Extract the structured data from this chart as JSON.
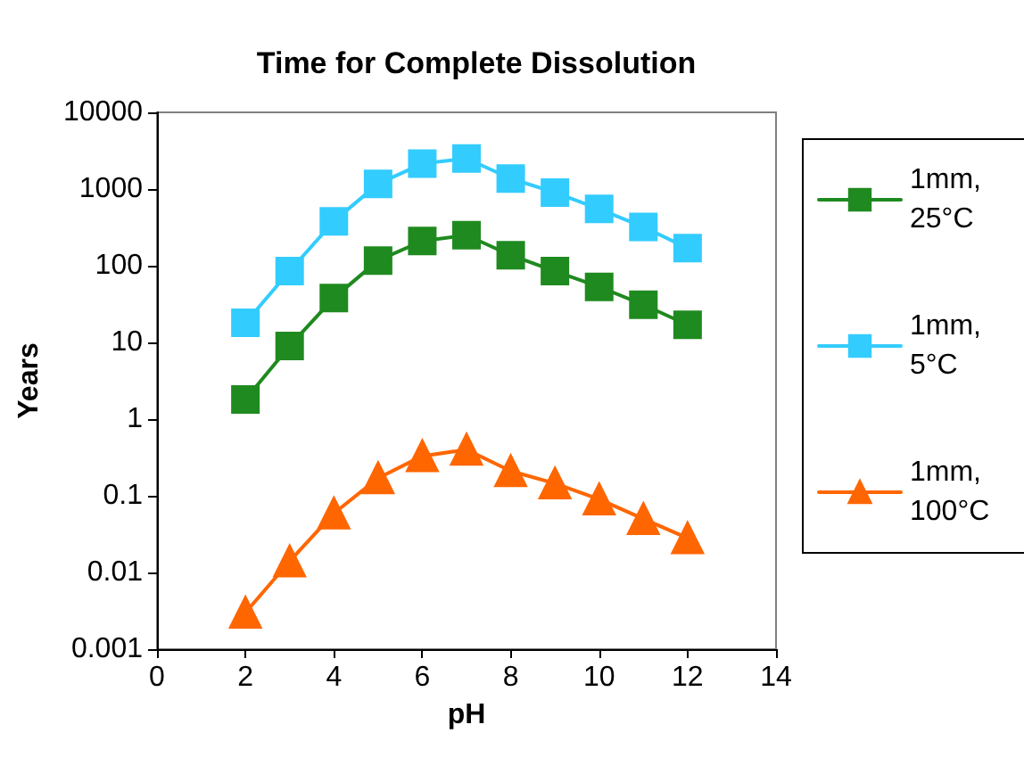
{
  "chart_data": {
    "type": "line",
    "title": "Time for Complete Dissolution",
    "xlabel": "pH",
    "ylabel": "Years",
    "x": [
      2,
      3,
      4,
      5,
      6,
      7,
      8,
      9,
      10,
      11,
      12
    ],
    "series": [
      {
        "name": "1mm, 25°C",
        "color": "#1f8a1f",
        "marker": "square",
        "values": [
          1.8,
          9,
          38,
          117,
          210,
          250,
          137,
          85,
          53,
          31,
          17
        ]
      },
      {
        "name": "1mm, 5°C",
        "color": "#33ccff",
        "marker": "square",
        "values": [
          18,
          85,
          380,
          1170,
          2140,
          2500,
          1370,
          900,
          550,
          320,
          170
        ]
      },
      {
        "name": "1mm, 100°C",
        "color": "#ff6600",
        "marker": "triangle",
        "values": [
          0.003,
          0.014,
          0.059,
          0.17,
          0.33,
          0.4,
          0.21,
          0.145,
          0.09,
          0.05,
          0.028
        ]
      }
    ],
    "xlim": [
      0,
      14
    ],
    "xticks": [
      0,
      2,
      4,
      6,
      8,
      10,
      12,
      14
    ],
    "ylim": [
      0.001,
      10000
    ],
    "yticks": [
      0.001,
      0.01,
      0.1,
      1,
      10,
      100,
      1000,
      10000
    ],
    "log": "y",
    "grid": false,
    "legend": "right"
  }
}
